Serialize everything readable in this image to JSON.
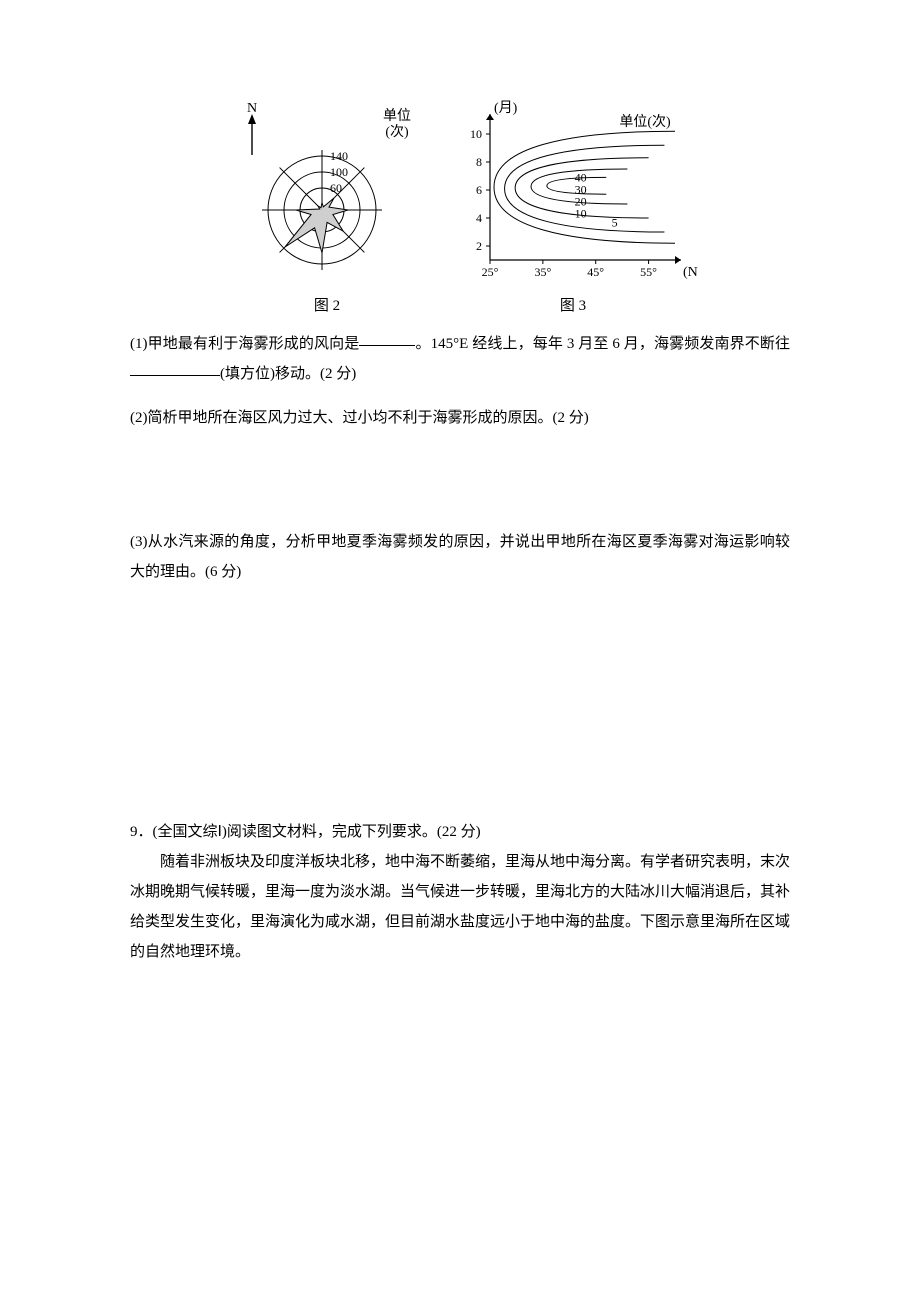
{
  "figures": {
    "rose": {
      "north_label": "N",
      "unit_label1": "单位",
      "unit_label2": "(次)",
      "label_fontsize": 14,
      "ring_values": [
        60,
        100,
        140
      ],
      "ring_radii": [
        22,
        38,
        54
      ],
      "tick_fontsize": 12,
      "stroke_color": "#000000",
      "fill_color": "#cfcfcf",
      "fill_opacity": 1.0,
      "background": "#ffffff",
      "directions_deg": [
        0,
        45,
        90,
        135,
        180,
        225,
        270,
        315
      ],
      "petal_values_by_dir": [
        20,
        45,
        70,
        80,
        115,
        140,
        70,
        15
      ],
      "caption": "图 2"
    },
    "contour": {
      "x_label": "(N)",
      "y_label": "(月)",
      "unit_label": "单位(次)",
      "label_fontsize": 14,
      "tick_fontsize": 12,
      "stroke_color": "#000000",
      "background": "#ffffff",
      "x_ticks": [
        25,
        35,
        45,
        55
      ],
      "x_tick_labels": [
        "25°",
        "35°",
        "45°",
        "55°"
      ],
      "x_range": [
        25,
        60
      ],
      "y_ticks": [
        2,
        4,
        6,
        8,
        10
      ],
      "y_range": [
        1,
        11
      ],
      "contour_labels": [
        "5",
        "10",
        "20",
        "30",
        "40"
      ],
      "contours": [
        {
          "label": "5",
          "bbox_x": [
            25,
            60
          ],
          "bbox_y": [
            2.2,
            10.2
          ]
        },
        {
          "label": "10",
          "bbox_x": [
            27,
            58
          ],
          "bbox_y": [
            3.0,
            9.2
          ]
        },
        {
          "label": "20",
          "bbox_x": [
            29,
            55
          ],
          "bbox_y": [
            4.0,
            8.3
          ]
        },
        {
          "label": "30",
          "bbox_x": [
            32,
            51
          ],
          "bbox_y": [
            5.0,
            7.5
          ]
        },
        {
          "label": "40",
          "bbox_x": [
            35,
            47
          ],
          "bbox_y": [
            5.7,
            6.9
          ]
        }
      ],
      "caption": "图 3"
    }
  },
  "q1": {
    "prefix": "(1)甲地最有利于海雾形成的风向是",
    "mid1": "。145°E 经线上，每年 3 月至 6 月，海雾频发南界不断往",
    "suffix": "(填方位)移动。(2 分)"
  },
  "q2": {
    "text": "(2)简析甲地所在海区风力过大、过小均不利于海雾形成的原因。(2 分)"
  },
  "q3": {
    "text": "(3)从水汽来源的角度，分析甲地夏季海雾频发的原因，并说出甲地所在海区夏季海雾对海运影响较大的理由。(6 分)"
  },
  "q9": {
    "head": "9．(全国文综Ⅰ)阅读图文材料，完成下列要求。(22 分)",
    "body": "随着非洲板块及印度洋板块北移，地中海不断萎缩，里海从地中海分离。有学者研究表明，末次冰期晚期气候转暖，里海一度为淡水湖。当气候进一步转暖，里海北方的大陆冰川大幅消退后，其补给类型发生变化，里海演化为咸水湖，但目前湖水盐度远小于地中海的盐度。下图示意里海所在区域的自然地理环境。"
  }
}
